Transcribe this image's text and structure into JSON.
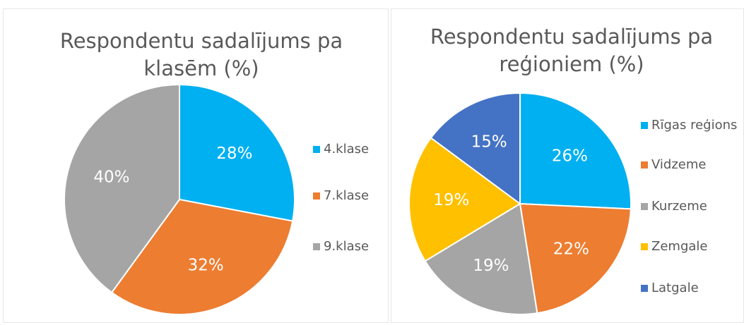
{
  "chart_data": [
    {
      "type": "pie",
      "title": "Respondentu sadalījums pa klasēm (%)",
      "categories": [
        "4.klase",
        "7.klase",
        "9.klase"
      ],
      "values": [
        28,
        32,
        40
      ],
      "value_labels": [
        "28%",
        "32%",
        "40%"
      ],
      "colors": [
        "#00b0f0",
        "#ed7d31",
        "#a5a5a5"
      ],
      "legend": "right"
    },
    {
      "type": "pie",
      "title": "Respondentu sadalījums pa reģioniem (%)",
      "categories": [
        "Rīgas reģions",
        "Vidzeme",
        "Kurzeme",
        "Zemgale",
        "Latgale"
      ],
      "values": [
        26,
        22,
        19,
        19,
        15
      ],
      "value_labels": [
        "26%",
        "22%",
        "19%",
        "19%",
        "15%"
      ],
      "colors": [
        "#00b0f0",
        "#ed7d31",
        "#a5a5a5",
        "#ffc000",
        "#4472c4"
      ],
      "legend": "right"
    }
  ]
}
